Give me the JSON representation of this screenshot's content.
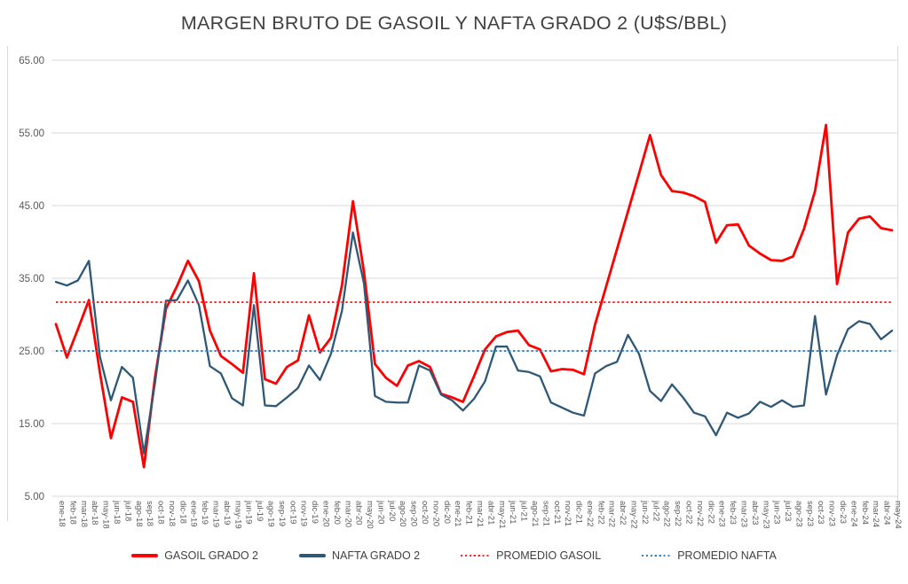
{
  "title": "MARGEN BRUTO DE GASOIL Y NAFTA GRADO 2 (U$S/BBL)",
  "colors": {
    "gasoil_line": "#ff0000",
    "nafta_line": "#2e5878",
    "promedio_gasoil_line": "#ff2222",
    "promedio_nafta_line": "#3584c4",
    "gridline": "#d9d9d9",
    "axis_text": "#595959",
    "title_text": "#404040"
  },
  "chart_data": {
    "type": "line",
    "title": "MARGEN BRUTO DE GASOIL Y NAFTA GRADO 2 (U$S/BBL)",
    "xlabel": "",
    "ylabel": "",
    "ylim": [
      5,
      65
    ],
    "ytick_step": 10,
    "ytick_decimals": 2,
    "grid": true,
    "legend_position": "bottom",
    "categories": [
      "ene-18",
      "feb-18",
      "mar-18",
      "abr-18",
      "may-18",
      "jun-18",
      "jul-18",
      "ago-18",
      "sep-18",
      "oct-18",
      "nov-18",
      "dic-18",
      "ene-19",
      "feb-19",
      "mar-19",
      "abr-19",
      "may-19",
      "jun-19",
      "jul-19",
      "ago-19",
      "sep-19",
      "oct-19",
      "nov-19",
      "dic-19",
      "ene-20",
      "feb-20",
      "mar-20",
      "abr-20",
      "may-20",
      "jun-20",
      "jul-20",
      "ago-20",
      "sep-20",
      "oct-20",
      "nov-20",
      "dic-20",
      "ene-21",
      "feb-21",
      "mar-21",
      "abr-21",
      "may-21",
      "jun-21",
      "jul-21",
      "ago-21",
      "sep-21",
      "oct-21",
      "nov-21",
      "dic-21",
      "ene-22",
      "feb-22",
      "mar-22",
      "abr-22",
      "may-22",
      "jun-22",
      "jul-22",
      "ago-22",
      "sep-22",
      "oct-22",
      "nov-22",
      "dic-22",
      "ene-23",
      "feb-23",
      "mar-23",
      "abr-23",
      "may-23",
      "jun-23",
      "jul-23",
      "ago-23",
      "sep-23",
      "oct-23",
      "nov-23",
      "dic-23",
      "ene-24",
      "feb-24",
      "mar-24",
      "abr-24",
      "may-24"
    ],
    "series": [
      {
        "name": "GASOIL GRADO 2",
        "color": "#ff0000",
        "style": "solid",
        "width": 2.8,
        "values": [
          28.7,
          24.1,
          28.0,
          32.0,
          22.0,
          13.0,
          18.6,
          18.0,
          9.0,
          21.3,
          30.8,
          33.9,
          37.4,
          34.6,
          27.8,
          24.3,
          23.2,
          22.0,
          35.7,
          21.1,
          20.5,
          22.8,
          23.7,
          29.9,
          24.8,
          26.8,
          34.0,
          45.6,
          35.9,
          23.2,
          21.3,
          20.2,
          23.0,
          23.6,
          22.8,
          19.1,
          18.6,
          18.0,
          21.5,
          25.2,
          27.0,
          27.6,
          27.8,
          25.8,
          25.2,
          22.2,
          22.5,
          22.4,
          21.8,
          28.6,
          33.8,
          39.0,
          44.2,
          49.4,
          54.7,
          49.2,
          47.0,
          46.8,
          46.3,
          45.5,
          39.9,
          42.3,
          42.4,
          39.5,
          38.4,
          37.5,
          37.4,
          38.0,
          41.8,
          47.0,
          56.1,
          34.2,
          41.3,
          43.2,
          43.5,
          41.9,
          41.6
        ]
      },
      {
        "name": "NAFTA GRADO 2",
        "color": "#2e5878",
        "style": "solid",
        "width": 2.3,
        "values": [
          34.5,
          34.0,
          34.7,
          37.4,
          24.2,
          18.2,
          22.8,
          21.3,
          10.9,
          20.5,
          31.9,
          32.0,
          34.7,
          31.3,
          22.9,
          21.9,
          18.5,
          17.5,
          31.3,
          17.5,
          17.4,
          18.6,
          19.9,
          23.0,
          21.0,
          24.6,
          30.5,
          41.3,
          34.3,
          18.8,
          18.0,
          17.9,
          17.9,
          23.0,
          22.3,
          19.0,
          18.2,
          16.8,
          18.4,
          20.8,
          25.6,
          25.6,
          22.3,
          22.1,
          21.5,
          17.9,
          17.2,
          16.5,
          16.1,
          21.9,
          22.9,
          23.5,
          27.2,
          24.6,
          19.5,
          18.1,
          20.4,
          18.6,
          16.5,
          16.0,
          13.4,
          16.5,
          15.8,
          16.4,
          18.0,
          17.3,
          18.2,
          17.3,
          17.5,
          29.8,
          19.0,
          24.4,
          28.0,
          29.1,
          28.7,
          26.6,
          27.8
        ]
      },
      {
        "name": "PROMEDIO GASOIL",
        "color": "#ff2222",
        "style": "dotted",
        "width": 2.0,
        "constant": 31.7
      },
      {
        "name": "PROMEDIO NAFTA",
        "color": "#3584c4",
        "style": "dotted",
        "width": 2.0,
        "constant": 25.0
      }
    ]
  }
}
